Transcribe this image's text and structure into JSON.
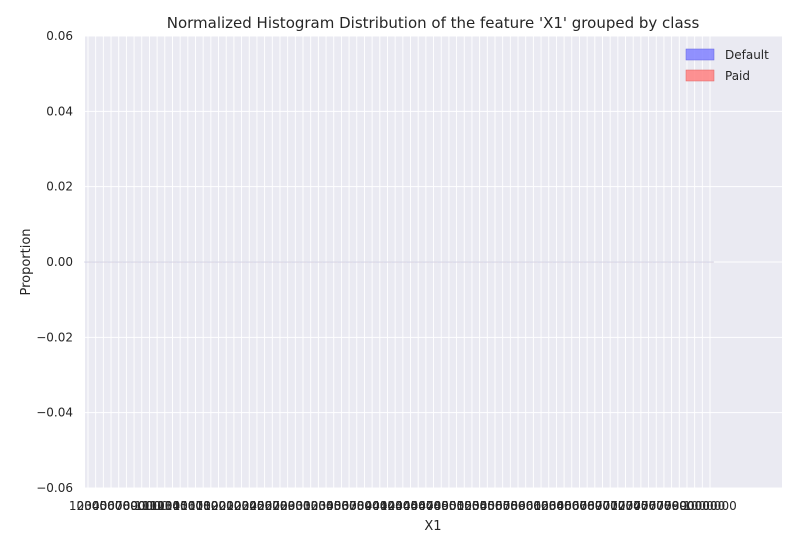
{
  "chart_data": {
    "type": "bar",
    "title": "Normalized Histogram Distribution of the feature 'X1' grouped by class",
    "xlabel": "X1",
    "ylabel": "Proportion",
    "ylim": [
      -0.06,
      0.06
    ],
    "yticks": [
      0.06,
      0.04,
      0.02,
      0.0,
      -0.02,
      -0.04,
      -0.06
    ],
    "ytick_labels": [
      "0.06",
      "0.04",
      "0.02",
      "0.00",
      "−0.02",
      "−0.04",
      "−0.06"
    ],
    "categories": [
      "10000",
      "20000",
      "30000",
      "40000",
      "50000",
      "60000",
      "70000",
      "80000",
      "90000",
      "100000",
      "110000",
      "120000",
      "130000",
      "140000",
      "150000",
      "160000",
      "170000",
      "180000",
      "190000",
      "200000",
      "210000",
      "220000",
      "230000",
      "240000",
      "250000",
      "260000",
      "270000",
      "280000",
      "290000",
      "300000",
      "310000",
      "320000",
      "330000",
      "340000",
      "350000",
      "360000",
      "370000",
      "380000",
      "390000",
      "400000",
      "410000",
      "420000",
      "430000",
      "440000",
      "450000",
      "460000",
      "470000",
      "480000",
      "490000",
      "500000",
      "510000",
      "520000",
      "530000",
      "540000",
      "550000",
      "560000",
      "570000",
      "580000",
      "590000",
      "600000",
      "610000",
      "620000",
      "630000",
      "640000",
      "650000",
      "660000",
      "670000",
      "680000",
      "690000",
      "700000",
      "710000",
      "720000",
      "730000",
      "740000",
      "750000",
      "760000",
      "770000",
      "780000",
      "790000",
      "800000",
      "900000",
      "1000000"
    ],
    "series": [
      {
        "name": "Default",
        "color": "#8080ff",
        "values": [
          0,
          0,
          0,
          0,
          0,
          0,
          0,
          0,
          0,
          0,
          0,
          0,
          0,
          0,
          0,
          0,
          0,
          0,
          0,
          0,
          0,
          0,
          0,
          0,
          0,
          0,
          0,
          0,
          0,
          0,
          0,
          0,
          0,
          0,
          0,
          0,
          0,
          0,
          0,
          0,
          0,
          0,
          0,
          0,
          0,
          0,
          0,
          0,
          0,
          0,
          0,
          0,
          0,
          0,
          0,
          0,
          0,
          0,
          0,
          0,
          0,
          0,
          0,
          0,
          0,
          0,
          0,
          0,
          0,
          0,
          0,
          0,
          0,
          0,
          0,
          0,
          0,
          0,
          0,
          0,
          0,
          0
        ]
      },
      {
        "name": "Paid",
        "color": "#ff8080",
        "values": [
          0,
          0,
          0,
          0,
          0,
          0,
          0,
          0,
          0,
          0,
          0,
          0,
          0,
          0,
          0,
          0,
          0,
          0,
          0,
          0,
          0,
          0,
          0,
          0,
          0,
          0,
          0,
          0,
          0,
          0,
          0,
          0,
          0,
          0,
          0,
          0,
          0,
          0,
          0,
          0,
          0,
          0,
          0,
          0,
          0,
          0,
          0,
          0,
          0,
          0,
          0,
          0,
          0,
          0,
          0,
          0,
          0,
          0,
          0,
          0,
          0,
          0,
          0,
          0,
          0,
          0,
          0,
          0,
          0,
          0,
          0,
          0,
          0,
          0,
          0,
          0,
          0,
          0,
          0,
          0,
          0,
          0
        ]
      }
    ],
    "legend_position": "top-right",
    "grid": true,
    "background_color": "#eaeaf2",
    "grid_color": "#ffffff"
  }
}
